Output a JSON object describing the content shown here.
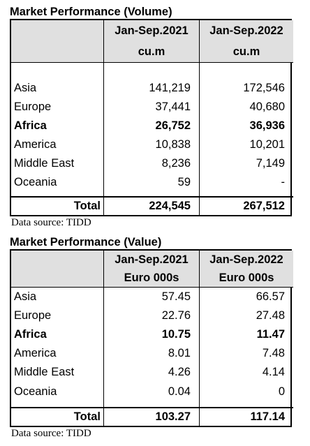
{
  "volume": {
    "title": "Market Performance (Volume)",
    "columns": [
      "Jan-Sep.2021",
      "Jan-Sep.2022"
    ],
    "units": [
      "cu.m",
      "cu.m"
    ],
    "rows": [
      {
        "region": "Asia",
        "v2021": "141,219",
        "v2022": "172,546",
        "bold": false
      },
      {
        "region": "Europe",
        "v2021": "37,441",
        "v2022": "40,680",
        "bold": false
      },
      {
        "region": "Africa",
        "v2021": "26,752",
        "v2022": "36,936",
        "bold": true
      },
      {
        "region": "America",
        "v2021": "10,838",
        "v2022": "10,201",
        "bold": false
      },
      {
        "region": "Middle East",
        "v2021": "8,236",
        "v2022": "7,149",
        "bold": false
      },
      {
        "region": "Oceania",
        "v2021": "59",
        "v2022": "-",
        "bold": false
      }
    ],
    "total": {
      "label": "Total",
      "v2021": "224,545",
      "v2022": "267,512"
    },
    "source": "Data source: TIDD"
  },
  "value": {
    "title": "Market Performance (Value)",
    "columns": [
      "Jan-Sep.2021",
      "Jan-Sep.2022"
    ],
    "units": [
      "Euro 000s",
      "Euro 000s"
    ],
    "rows": [
      {
        "region": "Asia",
        "v2021": "57.45",
        "v2022": "66.57",
        "bold": false
      },
      {
        "region": "Europe",
        "v2021": "22.76",
        "v2022": "27.48",
        "bold": false
      },
      {
        "region": "Africa",
        "v2021": "10.75",
        "v2022": "11.47",
        "bold": true
      },
      {
        "region": "America",
        "v2021": "8.01",
        "v2022": "7.48",
        "bold": false
      },
      {
        "region": "Middle East",
        "v2021": "4.26",
        "v2022": "4.14",
        "bold": false
      },
      {
        "region": "Oceania",
        "v2021": "0.04",
        "v2022": "0",
        "bold": false
      }
    ],
    "total": {
      "label": "Total",
      "v2021": "103.27",
      "v2022": "117.14"
    },
    "source": "Data source: TIDD"
  },
  "colors": {
    "header_fill": "#e0e0e0",
    "border": "#000000",
    "text": "#000000"
  }
}
